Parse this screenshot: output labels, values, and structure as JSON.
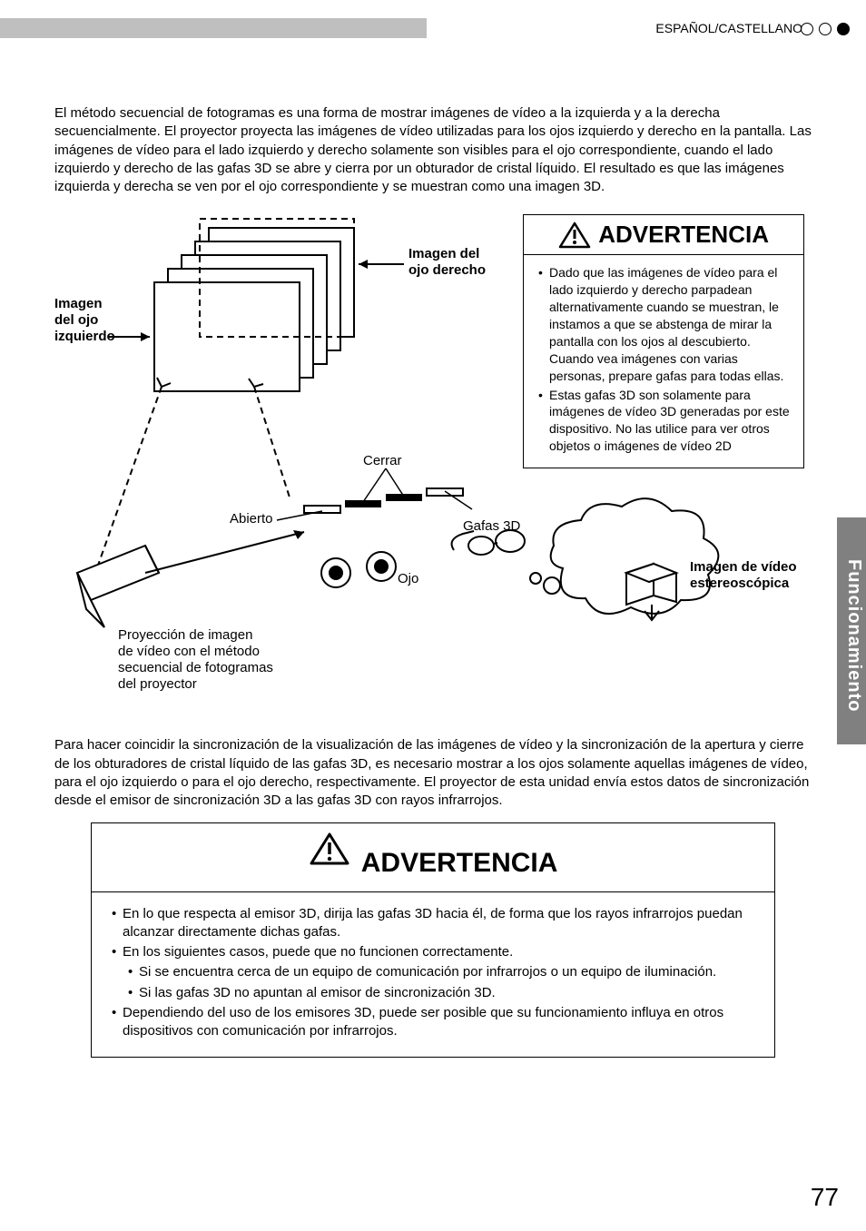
{
  "header": {
    "language": "ESPAÑOL/CASTELLANO"
  },
  "intro_paragraph": "El método secuencial de fotogramas es una forma de mostrar imágenes de vídeo a la izquierda y a la derecha secuencialmente. El proyector proyecta las imágenes de vídeo utilizadas para los ojos izquierdo y derecho en la pantalla. Las imágenes de vídeo para el lado izquierdo y derecho solamente son visibles para el ojo correspondiente, cuando el lado izquierdo y derecho de las gafas 3D se abre y cierra por un obturador de cristal líquido. El resultado es que las imágenes izquierda y derecha se ven por el ojo correspondiente y se muestran como una imagen 3D.",
  "diagram": {
    "labels": {
      "left_eye_image_l1": "Imagen",
      "left_eye_image_l2": "del ojo",
      "left_eye_image_l3": "izquierdo",
      "right_eye_image_l1": "Imagen del",
      "right_eye_image_l2": "ojo derecho",
      "close": "Cerrar",
      "open": "Abierto",
      "eye": "Ojo",
      "glasses": "Gafas 3D",
      "stereo_l1": "Imagen de vídeo",
      "stereo_l2": "estereoscópica",
      "projection_l1": "Proyección de imagen",
      "projection_l2": "de vídeo con el método",
      "projection_l3": "secuencial de fotogramas",
      "projection_l4": "del proyector"
    },
    "warning": {
      "title": "ADVERTENCIA",
      "bullets": [
        "Dado que las imágenes de vídeo para el lado izquierdo y derecho parpadean alternativamente cuando se muestran, le instamos a que se abstenga de mirar la pantalla con los ojos al descubierto. Cuando vea imágenes con varias personas, prepare gafas para todas ellas.",
        "Estas gafas 3D son solamente para imágenes de vídeo 3D generadas por este dispositivo. No las utilice para ver otros objetos o imágenes de vídeo 2D"
      ]
    }
  },
  "sync_paragraph": "Para hacer coincidir la sincronización de la visualización de las imágenes de vídeo y la sincronización de la apertura y cierre de los obturadores de cristal líquido de las gafas 3D, es necesario mostrar a los ojos solamente aquellas imágenes de vídeo, para el ojo izquierdo o para el ojo derecho, respectivamente. El proyector de esta unidad envía estos datos de sincronización desde el emisor de sincronización 3D a las gafas 3D con rayos infrarrojos.",
  "bottom_warning": {
    "title": "ADVERTENCIA",
    "bullets": [
      {
        "text": "En lo que respecta al emisor 3D, dirija las gafas 3D hacia él, de forma que los rayos infrarrojos puedan alcanzar directamente dichas gafas.",
        "level": 0
      },
      {
        "text": "En los siguientes casos, puede que no funcionen correctamente.",
        "level": 0
      },
      {
        "text": "Si se encuentra cerca de un equipo de comunicación por infrarrojos o un equipo de iluminación.",
        "level": 1
      },
      {
        "text": "Si las gafas 3D no apuntan al emisor de sincronización 3D.",
        "level": 1
      },
      {
        "text": "Dependiendo del uso de los emisores 3D, puede ser posible que su funcionamiento influya en otros dispositivos con comunicación por infrarrojos.",
        "level": 0
      }
    ]
  },
  "side_tab": "Funcionamiento",
  "page_number": "77",
  "colors": {
    "gray_bar": "#bfbfbf",
    "side_tab_bg": "#808080",
    "text": "#000000",
    "background": "#ffffff"
  }
}
